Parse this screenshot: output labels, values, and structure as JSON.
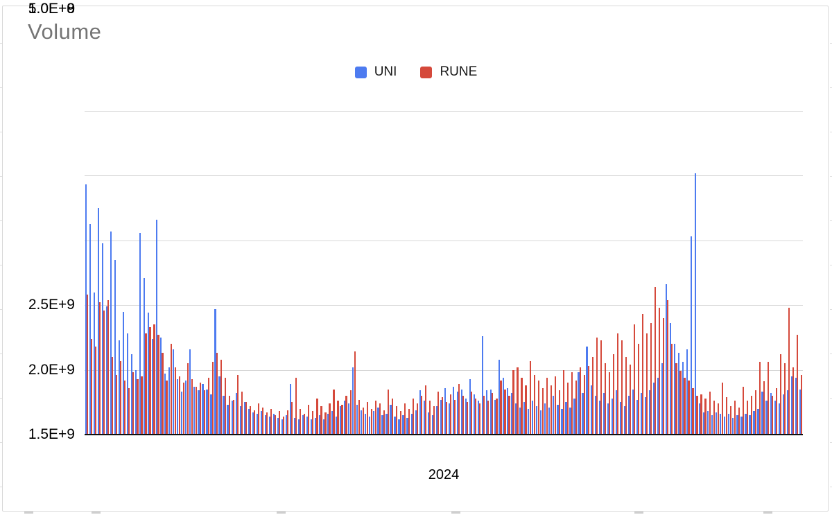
{
  "chart_data": {
    "type": "bar",
    "title": "Volume",
    "xlabel": "2024",
    "ylabel": "",
    "ylim": [
      0,
      2500000000
    ],
    "gridline_interval": 500000000,
    "grid": true,
    "legend_position": "top-center",
    "y_ticks": [
      "2.5E+9",
      "2.0E+9",
      "1.5E+9",
      "1.0E+9",
      "5.0E+8",
      "0"
    ],
    "x_description": "Daily volume bars across 2024; individual date ticks are not labeled in the image",
    "values_unit": 100000000,
    "series": [
      {
        "name": "UNI",
        "color": "#4d7bf0",
        "values": [
          19.3,
          16.3,
          11.0,
          17.5,
          14.8,
          9.9,
          15.7,
          13.5,
          7.3,
          9.5,
          7.8,
          6.2,
          5.0,
          15.6,
          12.1,
          9.4,
          7.4,
          16.6,
          7.5,
          4.7,
          5.2,
          6.6,
          4.3,
          3.3,
          4.2,
          6.6,
          3.7,
          3.4,
          3.9,
          3.5,
          3.1,
          9.7,
          4.5,
          3.0,
          2.3,
          2.6,
          3.2,
          2.2,
          2.5,
          2.0,
          1.7,
          1.6,
          1.8,
          1.5,
          1.4,
          1.6,
          1.3,
          1.2,
          1.5,
          3.9,
          1.3,
          1.2,
          1.5,
          1.4,
          1.2,
          1.3,
          1.5,
          1.2,
          1.6,
          1.8,
          1.4,
          2.2,
          2.6,
          2.4,
          5.2,
          2.3,
          1.9,
          1.6,
          1.4,
          1.8,
          2.1,
          1.5,
          1.6,
          2.3,
          1.4,
          1.2,
          1.5,
          1.3,
          1.6,
          1.9,
          3.4,
          2.6,
          1.7,
          1.5,
          2.2,
          2.7,
          3.6,
          2.4,
          3.7,
          3.3,
          3.5,
          2.8,
          4.3,
          3.1,
          2.6,
          7.6,
          3.4,
          3.5,
          2.7,
          5.8,
          4.4,
          3.6,
          3.2,
          2.4,
          2.1,
          2.5,
          2.0,
          2.6,
          2.2,
          1.9,
          2.4,
          2.1,
          3.0,
          2.3,
          2.0,
          2.5,
          2.1,
          2.8,
          4.8,
          3.2,
          6.8,
          3.8,
          3.0,
          2.6,
          3.2,
          2.4,
          2.8,
          3.4,
          2.5,
          2.2,
          3.0,
          3.5,
          2.7,
          3.2,
          2.9,
          3.4,
          4.0,
          4.4,
          5.5,
          11.6,
          8.6,
          7.0,
          6.3,
          5.6,
          6.6,
          15.3,
          20.2,
          2.4,
          1.7,
          1.8,
          1.5,
          1.7,
          1.6,
          1.4,
          1.6,
          1.3,
          1.5,
          1.4,
          1.6,
          1.5,
          1.8,
          2.0,
          3.3,
          2.6,
          3.2,
          2.6,
          2.4,
          3.1,
          3.4,
          4.5,
          4.4,
          3.5
        ]
      },
      {
        "name": "RUNE",
        "color": "#d5493b",
        "values": [
          10.8,
          7.4,
          6.8,
          10.2,
          9.6,
          10.4,
          6.0,
          4.6,
          5.7,
          4.2,
          3.6,
          4.8,
          4.3,
          4.5,
          7.8,
          8.3,
          8.5,
          7.7,
          6.3,
          4.2,
          7.0,
          5.2,
          4.5,
          4.0,
          5.5,
          4.3,
          3.7,
          4.0,
          3.4,
          4.4,
          5.6,
          6.3,
          5.8,
          4.4,
          3.0,
          2.7,
          4.6,
          3.3,
          2.5,
          2.2,
          1.9,
          2.4,
          2.1,
          1.7,
          2.0,
          1.5,
          1.8,
          1.4,
          1.9,
          2.5,
          4.4,
          2.0,
          1.6,
          2.3,
          1.8,
          2.8,
          2.2,
          1.7,
          2.4,
          3.5,
          2.6,
          2.3,
          3.0,
          3.4,
          6.4,
          2.7,
          2.1,
          2.5,
          2.0,
          2.6,
          2.4,
          1.9,
          3.5,
          2.8,
          2.2,
          1.8,
          2.4,
          2.0,
          2.8,
          2.4,
          3.0,
          3.8,
          2.6,
          2.2,
          3.3,
          2.9,
          2.5,
          3.1,
          2.7,
          3.9,
          3.0,
          2.5,
          3.3,
          2.8,
          2.4,
          3.0,
          2.6,
          3.2,
          2.8,
          4.2,
          3.5,
          3.0,
          5.0,
          5.2,
          4.4,
          3.8,
          5.7,
          4.6,
          4.2,
          3.6,
          4.4,
          3.8,
          4.5,
          3.4,
          5.0,
          4.0,
          4.8,
          4.2,
          5.2,
          4.6,
          5.3,
          6.0,
          7.5,
          7.3,
          5.5,
          4.8,
          6.2,
          7.8,
          7.3,
          6.0,
          5.4,
          8.5,
          7.0,
          9.3,
          7.8,
          8.6,
          11.4,
          9.8,
          9.0,
          10.4,
          7.0,
          5.5,
          4.9,
          4.4,
          4.2,
          3.6,
          3.0,
          3.1,
          2.8,
          3.3,
          2.6,
          2.4,
          4.0,
          2.9,
          2.2,
          2.6,
          2.1,
          3.7,
          2.6,
          3.0,
          3.4,
          5.6,
          4.1,
          5.6,
          3.0,
          3.6,
          6.2,
          5.5,
          9.8,
          5.2,
          7.7,
          4.6
        ]
      }
    ]
  }
}
